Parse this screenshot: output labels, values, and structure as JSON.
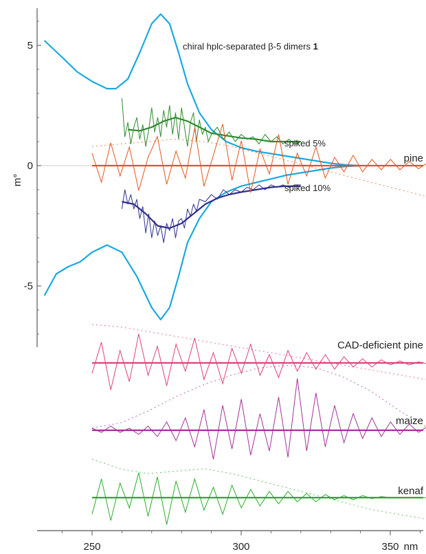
{
  "chart_data": {
    "type": "line",
    "title": "",
    "ylabel": "m°",
    "xlabel": "nm",
    "x_unit": "nm",
    "x_range": [
      233,
      372
    ],
    "y_range": [
      -7.3,
      6.6
    ],
    "grid": false,
    "x_ticks": [
      250,
      300,
      350
    ],
    "y_ticks": [
      5,
      0,
      -5
    ],
    "annotations": [
      {
        "text": "chiral hplc-separated β-5 dimers ",
        "bold_suffix": "1"
      },
      {
        "text": "spiked 5%"
      },
      {
        "text": "spiked 10%"
      }
    ],
    "colors": {
      "dimers": "#1aa8e0",
      "spiked5": "#2e8a2e",
      "spiked10": "#2f2f8f",
      "pine": "#e2541c",
      "cad": "#e0407a",
      "maize": "#a4309a",
      "kenaf": "#2ea82e",
      "zero_line": "#cccccc",
      "axis": "#555555"
    },
    "series": [
      {
        "key": "dimers_pos",
        "color": "#1aa8e0",
        "width": 2.2,
        "x": [
          234,
          240,
          245,
          250,
          255,
          258,
          262,
          266,
          270,
          273,
          276,
          279,
          282,
          286,
          290,
          295,
          300,
          305,
          310,
          315,
          320,
          325,
          330,
          335,
          340
        ],
        "y": [
          5.2,
          4.5,
          3.9,
          3.5,
          3.2,
          3.2,
          3.6,
          4.7,
          5.9,
          6.3,
          5.9,
          4.7,
          3.4,
          2.2,
          1.5,
          1.0,
          0.75,
          0.6,
          0.5,
          0.4,
          0.3,
          0.2,
          0.1,
          0.03,
          0
        ]
      },
      {
        "key": "dimers_neg",
        "color": "#1aa8e0",
        "width": 2.2,
        "x": [
          234,
          238,
          242,
          246,
          250,
          255,
          260,
          265,
          270,
          273,
          276,
          279,
          282,
          286,
          290,
          295,
          300,
          305,
          310,
          315,
          320,
          325,
          330,
          335,
          340
        ],
        "y": [
          -5.4,
          -4.5,
          -4.2,
          -4.0,
          -3.6,
          -3.3,
          -3.6,
          -4.6,
          -5.9,
          -6.4,
          -5.9,
          -4.6,
          -3.2,
          -2.2,
          -1.5,
          -1.1,
          -0.85,
          -0.7,
          -0.55,
          -0.4,
          -0.3,
          -0.2,
          -0.1,
          -0.03,
          0
        ]
      },
      {
        "key": "spiked5_smooth",
        "color": "#2e8a2e",
        "width": 2.2,
        "x": [
          262,
          266,
          270,
          274,
          278,
          282,
          286,
          290,
          295,
          300,
          305,
          310,
          315,
          320
        ],
        "y": [
          1.5,
          1.45,
          1.6,
          1.85,
          2.0,
          1.85,
          1.6,
          1.35,
          1.25,
          1.15,
          1.1,
          1.0,
          1.0,
          1.0
        ]
      },
      {
        "key": "spiked5_noisy",
        "color": "#2e8a2e",
        "width": 1.0,
        "x": [
          260,
          261,
          262,
          263,
          264,
          265,
          266,
          267,
          268,
          269,
          270,
          271,
          272,
          273,
          274,
          275,
          276,
          277,
          278,
          279,
          280,
          281,
          282,
          283,
          284,
          285,
          286,
          287,
          288,
          289,
          290,
          292,
          294,
          296,
          298,
          300,
          302,
          304,
          306,
          308,
          310,
          312,
          314,
          316,
          318,
          320
        ],
        "y": [
          2.8,
          1.2,
          1.8,
          0.9,
          1.6,
          2.0,
          1.1,
          1.7,
          0.8,
          1.5,
          2.4,
          1.4,
          2.0,
          1.2,
          2.3,
          1.6,
          2.5,
          1.3,
          2.2,
          1.1,
          2.4,
          1.6,
          0.8,
          1.8,
          2.2,
          1.0,
          1.9,
          1.3,
          1.6,
          1.0,
          1.3,
          1.6,
          1.1,
          1.4,
          1.0,
          1.3,
          1.1,
          1.2,
          0.9,
          1.3,
          1.0,
          1.2,
          0.9,
          1.1,
          0.9,
          1.0
        ]
      },
      {
        "key": "spiked10_smooth",
        "color": "#2f2f8f",
        "width": 2.2,
        "x": [
          260,
          264,
          268,
          272,
          276,
          280,
          284,
          288,
          292,
          296,
          300,
          305,
          310,
          315,
          320
        ],
        "y": [
          -1.5,
          -1.6,
          -2.0,
          -2.5,
          -2.6,
          -2.4,
          -2.0,
          -1.6,
          -1.35,
          -1.2,
          -1.1,
          -1.0,
          -0.9,
          -0.85,
          -0.85
        ]
      },
      {
        "key": "spiked10_noisy",
        "color": "#2f2f8f",
        "width": 1.0,
        "x": [
          260,
          261,
          262,
          263,
          264,
          265,
          266,
          267,
          268,
          269,
          270,
          271,
          272,
          273,
          274,
          275,
          276,
          277,
          278,
          279,
          280,
          281,
          282,
          283,
          284,
          285,
          286,
          288,
          290,
          292,
          294,
          296,
          298,
          300,
          302,
          304,
          306,
          308,
          310,
          312,
          314,
          316,
          318,
          320
        ],
        "y": [
          -1.8,
          -1.0,
          -1.6,
          -1.2,
          -1.8,
          -1.4,
          -2.2,
          -1.7,
          -2.8,
          -2.0,
          -3.0,
          -2.3,
          -2.9,
          -2.5,
          -3.2,
          -2.4,
          -2.7,
          -2.2,
          -3.0,
          -2.3,
          -2.2,
          -2.6,
          -1.8,
          -2.1,
          -1.6,
          -1.9,
          -1.4,
          -1.5,
          -1.2,
          -1.4,
          -1.0,
          -1.2,
          -1.0,
          -1.1,
          -0.9,
          -1.0,
          -0.8,
          -1.0,
          -0.8,
          -0.9,
          -0.8,
          -0.9,
          -0.8,
          -0.8
        ]
      }
    ],
    "offset_traces": [
      {
        "key": "pine",
        "label": "pine",
        "baseline": 0.0,
        "color": "#e2541c",
        "scale": 0.36,
        "noise": [
          0.6,
          -0.8,
          1.1,
          -0.5,
          0.9,
          -1.2,
          0.4,
          1.4,
          -0.9,
          0.7,
          -0.6,
          1.8,
          -1.0,
          0.5,
          2.0,
          -0.7,
          1.2,
          -1.3,
          0.8,
          -0.4,
          1.5,
          -0.9,
          0.6,
          -0.5,
          0.9,
          -0.6,
          0.4,
          -0.3,
          0.5,
          -0.3,
          0.3,
          -0.2,
          0.3,
          -0.2,
          0.2,
          -0.15,
          0.15,
          -0.1,
          0.1,
          -0.1
        ],
        "envelope": [
          0.8,
          0.9,
          1.0,
          1.1,
          1.0,
          0.8,
          0.5,
          0.2,
          -0.1,
          -0.4,
          -0.7,
          -1.0,
          -1.3,
          -1.5
        ]
      },
      {
        "key": "cad",
        "label": "CAD-deficient pine",
        "baseline": -8.2,
        "color": "#e0407a",
        "scale": 0.36,
        "noise": [
          -0.5,
          1.0,
          -1.3,
          0.6,
          -0.9,
          1.4,
          -0.6,
          0.8,
          -1.1,
          0.9,
          -0.4,
          1.2,
          -0.8,
          0.5,
          -1.0,
          0.7,
          -0.5,
          0.9,
          -0.6,
          0.4,
          -0.7,
          0.6,
          -0.4,
          0.5,
          -0.3,
          0.4,
          -0.3,
          0.3,
          -0.2,
          0.2,
          -0.2,
          0.15,
          -0.1,
          0.1,
          -0.1,
          0.05,
          -0.05,
          0.05,
          0,
          0
        ],
        "envelope": [
          1.6,
          1.5,
          1.3,
          1.1,
          0.9,
          0.7,
          0.5,
          0.3,
          0.1,
          -0.1,
          -0.3,
          -0.5,
          -0.7,
          -0.9
        ]
      },
      {
        "key": "maize",
        "label": "maize",
        "baseline": -11.0,
        "color": "#a4309a",
        "scale": 0.36,
        "noise": [
          0.1,
          -0.1,
          0.2,
          -0.1,
          0.1,
          -0.2,
          0.2,
          -0.3,
          0.4,
          -0.5,
          0.6,
          -0.8,
          1.0,
          -1.4,
          1.2,
          -0.9,
          1.5,
          -1.2,
          0.8,
          -1.0,
          1.6,
          -1.3,
          2.5,
          -1.0,
          1.8,
          -0.8,
          1.2,
          -0.6,
          0.8,
          -0.4,
          0.6,
          -0.3,
          0.4,
          -0.2,
          0.3,
          -0.1,
          0.2,
          -0.1,
          0.1,
          0
        ],
        "envelope": [
          0.1,
          0.3,
          0.8,
          1.4,
          1.9,
          2.3,
          2.6,
          2.7,
          2.6,
          2.2,
          1.6,
          0.8,
          0.1,
          -0.6
        ]
      },
      {
        "key": "kenaf",
        "label": "kenaf",
        "baseline": -13.8,
        "color": "#2ea82e",
        "scale": 0.36,
        "noise": [
          -0.8,
          0.9,
          -1.1,
          0.7,
          -0.5,
          1.2,
          -0.9,
          1.0,
          -1.3,
          0.8,
          -0.7,
          0.9,
          -0.6,
          0.5,
          -0.8,
          0.6,
          -0.5,
          0.4,
          -0.4,
          0.3,
          -0.3,
          0.3,
          -0.2,
          0.2,
          -0.2,
          0.15,
          -0.1,
          0.1,
          -0.1,
          0.1,
          -0.05,
          0.05,
          0,
          0,
          0,
          0,
          0,
          0,
          0,
          0
        ],
        "envelope": [
          1.6,
          1.2,
          1.0,
          1.1,
          1.2,
          1.0,
          0.7,
          0.4,
          0.1,
          -0.2,
          -0.5,
          -0.7,
          -0.9,
          -1.0
        ]
      }
    ]
  }
}
